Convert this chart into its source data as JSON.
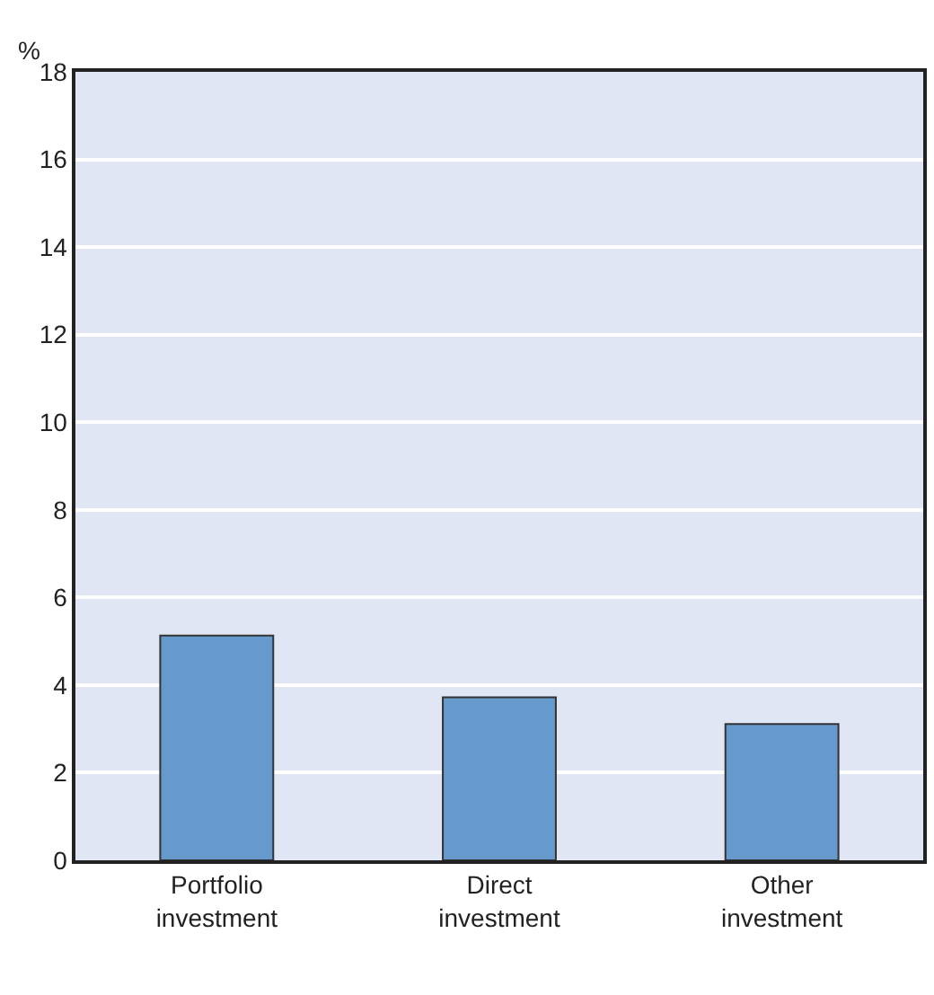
{
  "chart_data": {
    "type": "bar",
    "ylabel": "%",
    "categories": [
      "Portfolio\ninvestment",
      "Direct\ninvestment",
      "Other\ninvestment"
    ],
    "values": [
      5.13,
      3.72,
      3.11
    ],
    "color": "#6699cc",
    "ylim": [
      0,
      18
    ],
    "yticks": [
      0,
      2,
      4,
      6,
      8,
      10,
      12,
      14,
      16,
      18
    ],
    "grid": "y"
  }
}
